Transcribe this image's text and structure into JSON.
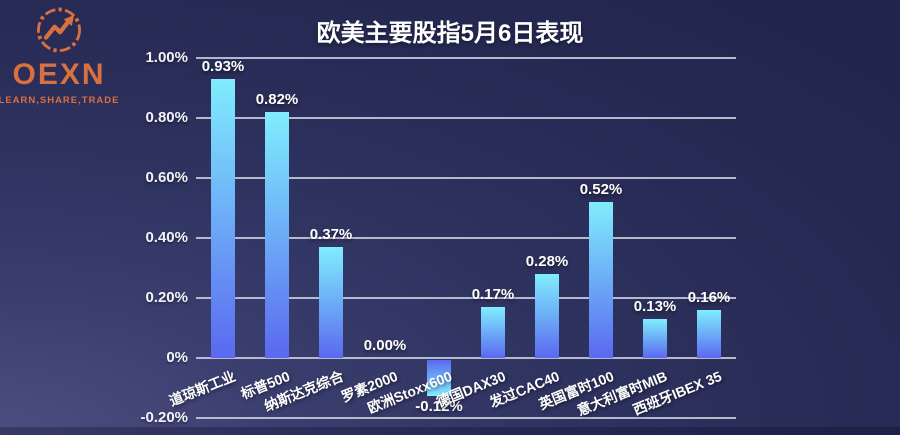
{
  "logo": {
    "brand": "OEXN",
    "tagline": "LEARN,SHARE,TRADE",
    "color": "#D9703F",
    "icon": "trend-arrow-icon"
  },
  "chart_data": {
    "type": "bar",
    "title": "欧美主要股指5月6日表现",
    "categories": [
      "道琼斯工业",
      "标普500",
      "纳斯达克综合",
      "罗素2000",
      "欧洲Stoxx600",
      "德国DAX30",
      "发过CAC40",
      "英国富时100",
      "意大利富时MIB",
      "西班牙IBEX 35"
    ],
    "values": [
      0.93,
      0.82,
      0.37,
      0,
      -0.12,
      0.17,
      0.28,
      0.52,
      0.13,
      0.16
    ],
    "value_labels": [
      "0.93%",
      "0.82%",
      "0.37%",
      "0.00%",
      "-0.12%",
      "0.17%",
      "0.28%",
      "0.52%",
      "0.13%",
      "0.16%"
    ],
    "unit": "%",
    "xlabel": "",
    "ylabel": "",
    "ylim": [
      -0.2,
      1.0
    ],
    "y_ticks": [
      {
        "label": "1.00%",
        "value": 1.0
      },
      {
        "label": "0.80%",
        "value": 0.8
      },
      {
        "label": "0.60%",
        "value": 0.6
      },
      {
        "label": "0.40%",
        "value": 0.4
      },
      {
        "label": "0.20%",
        "value": 0.2
      },
      {
        "label": "0%",
        "value": 0
      },
      {
        "label": "-0.20%",
        "value": -0.2
      }
    ],
    "grid": true,
    "legend_position": "none",
    "colors": {
      "bar_gradient_top": "#80EDFD",
      "bar_gradient_bottom": "#5B68F0",
      "gridline": "#CDD1E0",
      "value_label": "#FFFFFF",
      "title": "#FFFFFF"
    }
  }
}
